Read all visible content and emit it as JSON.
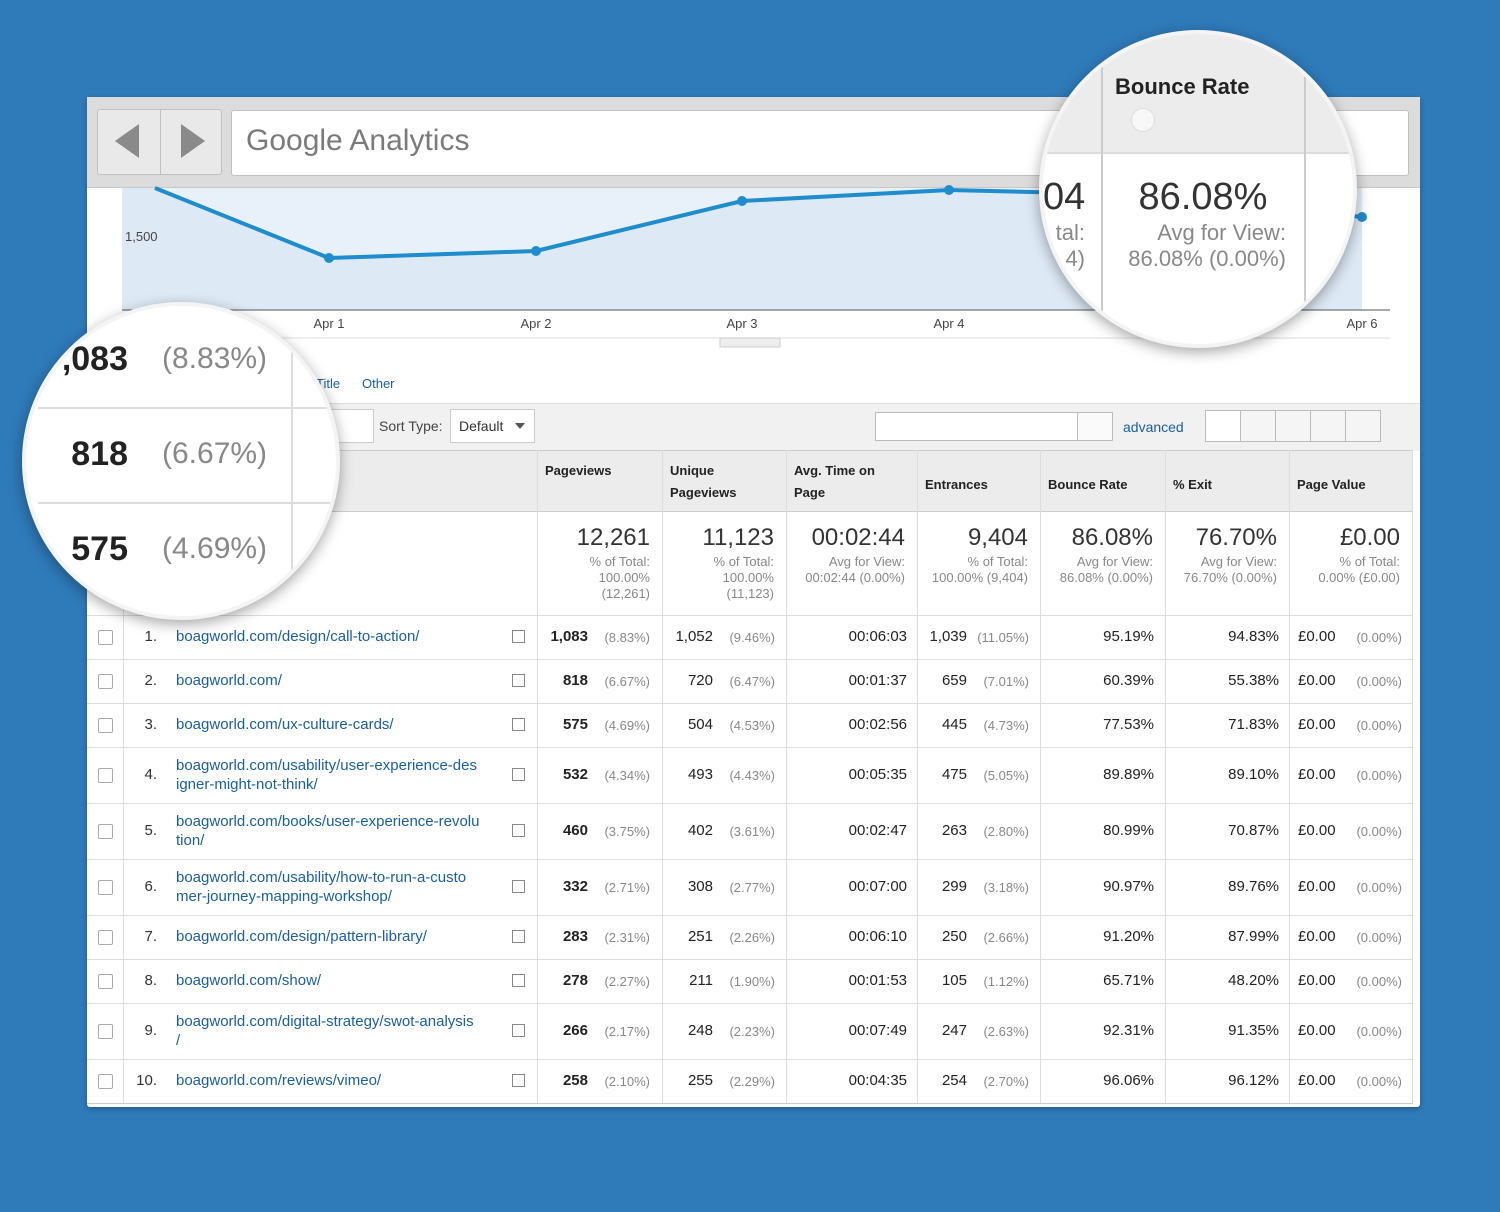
{
  "browser": {
    "address": "Google Analytics"
  },
  "chart": {
    "y_label": "1,500",
    "x_labels": [
      "Apr 1",
      "Apr 2",
      "Apr 3",
      "Apr 4",
      "Apr 6"
    ]
  },
  "toolbar": {
    "tabs": [
      "Title",
      "Other"
    ],
    "sort_label": "Sort Type:",
    "sort_value": "Default",
    "advanced": "advanced"
  },
  "table": {
    "headers": [
      "Pageviews",
      "Unique Pageviews",
      "Avg. Time on Page",
      "Entrances",
      "Bounce Rate",
      "% Exit",
      "Page Value"
    ],
    "totals": [
      {
        "value": "12,261",
        "sub": [
          "% of Total:",
          "100.00%",
          "(12,261)"
        ]
      },
      {
        "value": "11,123",
        "sub": [
          "% of Total:",
          "100.00%",
          "(11,123)"
        ]
      },
      {
        "value": "00:02:44",
        "sub": [
          "Avg for View:",
          "00:02:44 (0.00%)"
        ]
      },
      {
        "value": "9,404",
        "sub": [
          "% of Total:",
          "100.00% (9,404)"
        ]
      },
      {
        "value": "86.08%",
        "sub": [
          "Avg for View:",
          "86.08% (0.00%)"
        ]
      },
      {
        "value": "76.70%",
        "sub": [
          "Avg for View:",
          "76.70% (0.00%)"
        ]
      },
      {
        "value": "£0.00",
        "sub": [
          "% of Total:",
          "0.00% (£0.00)"
        ]
      }
    ],
    "rows": [
      {
        "index": "1.",
        "page": [
          "boagworld.com/design/call-to-action/"
        ],
        "cells": [
          [
            "1,083",
            "(8.83%)"
          ],
          [
            "1,052",
            "(9.46%)"
          ],
          [
            "00:06:03"
          ],
          [
            "1,039",
            "(11.05%)"
          ],
          [
            "95.19%"
          ],
          [
            "94.83%"
          ],
          [
            "£0.00",
            "(0.00%)"
          ]
        ]
      },
      {
        "index": "2.",
        "page": [
          "boagworld.com/"
        ],
        "cells": [
          [
            "818",
            "(6.67%)"
          ],
          [
            "720",
            "(6.47%)"
          ],
          [
            "00:01:37"
          ],
          [
            "659",
            "(7.01%)"
          ],
          [
            "60.39%"
          ],
          [
            "55.38%"
          ],
          [
            "£0.00",
            "(0.00%)"
          ]
        ]
      },
      {
        "index": "3.",
        "page": [
          "boagworld.com/ux-culture-cards/"
        ],
        "cells": [
          [
            "575",
            "(4.69%)"
          ],
          [
            "504",
            "(4.53%)"
          ],
          [
            "00:02:56"
          ],
          [
            "445",
            "(4.73%)"
          ],
          [
            "77.53%"
          ],
          [
            "71.83%"
          ],
          [
            "£0.00",
            "(0.00%)"
          ]
        ]
      },
      {
        "index": "4.",
        "page": [
          "boagworld.com/usability/user-experience-des",
          "igner-might-not-think/"
        ],
        "cells": [
          [
            "532",
            "(4.34%)"
          ],
          [
            "493",
            "(4.43%)"
          ],
          [
            "00:05:35"
          ],
          [
            "475",
            "(5.05%)"
          ],
          [
            "89.89%"
          ],
          [
            "89.10%"
          ],
          [
            "£0.00",
            "(0.00%)"
          ]
        ]
      },
      {
        "index": "5.",
        "page": [
          "boagworld.com/books/user-experience-revolu",
          "tion/"
        ],
        "cells": [
          [
            "460",
            "(3.75%)"
          ],
          [
            "402",
            "(3.61%)"
          ],
          [
            "00:02:47"
          ],
          [
            "263",
            "(2.80%)"
          ],
          [
            "80.99%"
          ],
          [
            "70.87%"
          ],
          [
            "£0.00",
            "(0.00%)"
          ]
        ]
      },
      {
        "index": "6.",
        "page": [
          "boagworld.com/usability/how-to-run-a-custo",
          "mer-journey-mapping-workshop/"
        ],
        "cells": [
          [
            "332",
            "(2.71%)"
          ],
          [
            "308",
            "(2.77%)"
          ],
          [
            "00:07:00"
          ],
          [
            "299",
            "(3.18%)"
          ],
          [
            "90.97%"
          ],
          [
            "89.76%"
          ],
          [
            "£0.00",
            "(0.00%)"
          ]
        ]
      },
      {
        "index": "7.",
        "page": [
          "boagworld.com/design/pattern-library/"
        ],
        "cells": [
          [
            "283",
            "(2.31%)"
          ],
          [
            "251",
            "(2.26%)"
          ],
          [
            "00:06:10"
          ],
          [
            "250",
            "(2.66%)"
          ],
          [
            "91.20%"
          ],
          [
            "87.99%"
          ],
          [
            "£0.00",
            "(0.00%)"
          ]
        ]
      },
      {
        "index": "8.",
        "page": [
          "boagworld.com/show/"
        ],
        "cells": [
          [
            "278",
            "(2.27%)"
          ],
          [
            "211",
            "(1.90%)"
          ],
          [
            "00:01:53"
          ],
          [
            "105",
            "(1.12%)"
          ],
          [
            "65.71%"
          ],
          [
            "48.20%"
          ],
          [
            "£0.00",
            "(0.00%)"
          ]
        ]
      },
      {
        "index": "9.",
        "page": [
          "boagworld.com/digital-strategy/swot-analysis",
          "/"
        ],
        "cells": [
          [
            "266",
            "(2.17%)"
          ],
          [
            "248",
            "(2.23%)"
          ],
          [
            "00:07:49"
          ],
          [
            "247",
            "(2.63%)"
          ],
          [
            "92.31%"
          ],
          [
            "91.35%"
          ],
          [
            "£0.00",
            "(0.00%)"
          ]
        ]
      },
      {
        "index": "10.",
        "page": [
          "boagworld.com/reviews/vimeo/"
        ],
        "cells": [
          [
            "258",
            "(2.10%)"
          ],
          [
            "255",
            "(2.29%)"
          ],
          [
            "00:04:35"
          ],
          [
            "254",
            "(2.70%)"
          ],
          [
            "96.06%"
          ],
          [
            "96.12%"
          ],
          [
            "£0.00",
            "(0.00%)"
          ]
        ]
      }
    ]
  },
  "zoom_left": {
    "rows": [
      [
        ",083",
        "(8.83%)"
      ],
      [
        "818",
        "(6.67%)"
      ],
      [
        "575",
        "(4.69%)"
      ]
    ]
  },
  "zoom_right": {
    "header": "Bounce Rate",
    "value": "86.08%",
    "sub": [
      "Avg for View:",
      "86.08% (0.00%)"
    ],
    "left_fragments": [
      "04",
      "tal:",
      "4)"
    ]
  }
}
